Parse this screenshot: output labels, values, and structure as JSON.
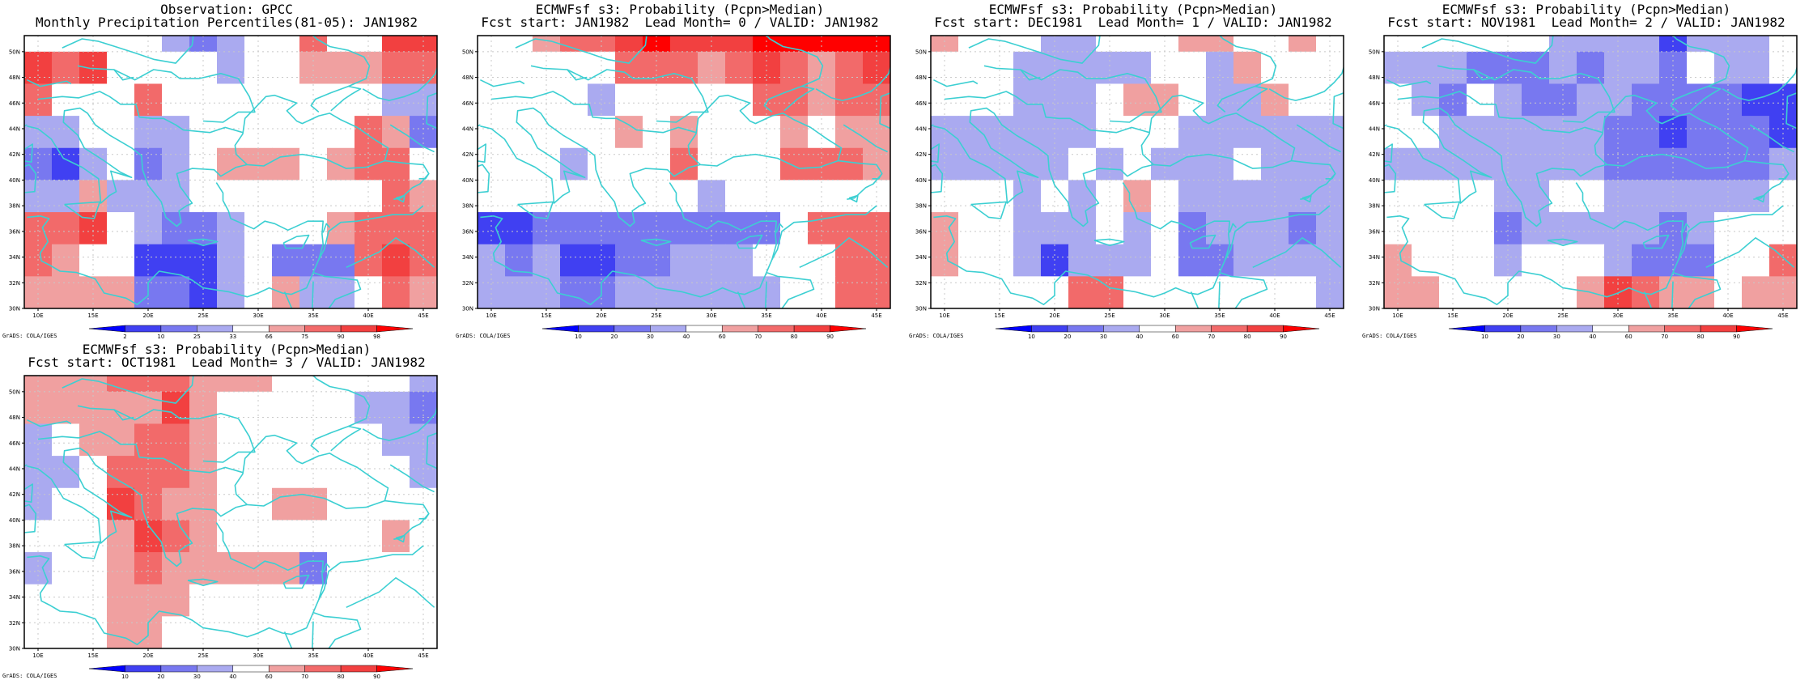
{
  "footer_label": "GrADS: COLA/IGES",
  "axis": {
    "lat_ticks": [
      "30N",
      "32N",
      "34N",
      "36N",
      "38N",
      "40N",
      "42N",
      "44N",
      "46N",
      "48N",
      "50N"
    ],
    "lon_ticks": [
      "10E",
      "15E",
      "20E",
      "25E",
      "30E",
      "35E",
      "40E",
      "45E"
    ]
  },
  "colors": {
    "coast": "#3ccfd2",
    "grid": "#c8c8c8",
    "frame": "#000000"
  },
  "colorbars": {
    "percentile": {
      "labels": [
        "2",
        "10",
        "25",
        "33",
        "66",
        "75",
        "90",
        "98"
      ],
      "colors": [
        "#0000ff",
        "#4040f2",
        "#7878f0",
        "#aaaaf0",
        "#ffffff",
        "#f0a0a0",
        "#f26a6a",
        "#f24040",
        "#ff0000"
      ]
    },
    "probability": {
      "labels": [
        "10",
        "20",
        "30",
        "40",
        "60",
        "70",
        "80",
        "90"
      ],
      "colors": [
        "#0000ff",
        "#4040f2",
        "#7878f0",
        "#aaaaf0",
        "#ffffff",
        "#f0a0a0",
        "#f26a6a",
        "#f24040",
        "#ff0000"
      ]
    }
  },
  "panels": [
    {
      "title1": "Observation: GPCC",
      "title2": "Monthly Precipitation Percentiles(81-05): JAN1982",
      "colorbar": "percentile"
    },
    {
      "title1": "ECMWFsf s3: Probability (Pcpn>Median)",
      "title2": "Fcst start: JAN1982  Lead Month= 0 / VALID: JAN1982",
      "colorbar": "probability"
    },
    {
      "title1": "ECMWFsf s3: Probability (Pcpn>Median)",
      "title2": "Fcst start: DEC1981  Lead Month= 1 / VALID: JAN1982",
      "colorbar": "probability"
    },
    {
      "title1": "ECMWFsf s3: Probability (Pcpn>Median)",
      "title2": "Fcst start: NOV1981  Lead Month= 2 / VALID: JAN1982",
      "colorbar": "probability"
    },
    {
      "title1": "ECMWFsf s3: Probability (Pcpn>Median)",
      "title2": "Fcst start: OCT1981  Lead Month= 3 / VALID: JAN1982",
      "colorbar": "probability"
    }
  ],
  "chart_data": [
    {
      "type": "heatmap",
      "title": "Observation: GPCC",
      "subtitle": "Monthly Precipitation Percentiles(81-05): JAN1982",
      "xlim": [
        8.75,
        46.25
      ],
      "ylim": [
        30,
        51.25
      ],
      "x_centers": [
        10,
        12.5,
        15,
        17.5,
        20,
        22.5,
        25,
        27.5,
        30,
        32.5,
        35,
        37.5,
        40,
        42.5,
        45
      ],
      "y_centers_top_to_bottom": [
        50,
        47.5,
        45,
        42.5,
        40,
        37.5,
        35,
        32.5,
        30
      ],
      "levels": [
        "2",
        "10",
        "25",
        "33",
        "66",
        "75",
        "90",
        "98"
      ],
      "class_index_grid": [
        [
          4,
          4,
          4,
          4,
          4,
          3,
          2,
          3,
          4,
          4,
          6,
          4,
          4,
          7,
          7
        ],
        [
          7,
          6,
          7,
          4,
          4,
          4,
          4,
          3,
          4,
          4,
          5,
          5,
          5,
          6,
          6
        ],
        [
          6,
          4,
          4,
          4,
          6,
          4,
          4,
          4,
          4,
          4,
          4,
          4,
          4,
          3,
          3
        ],
        [
          3,
          3,
          4,
          4,
          3,
          3,
          4,
          4,
          4,
          4,
          4,
          4,
          6,
          5,
          2
        ],
        [
          2,
          1,
          3,
          4,
          2,
          3,
          4,
          5,
          5,
          5,
          4,
          5,
          6,
          6,
          4
        ],
        [
          3,
          3,
          5,
          3,
          3,
          3,
          4,
          4,
          4,
          4,
          4,
          4,
          4,
          6,
          5
        ],
        [
          6,
          6,
          7,
          4,
          3,
          2,
          2,
          3,
          4,
          4,
          4,
          5,
          6,
          6,
          6
        ],
        [
          6,
          5,
          4,
          4,
          1,
          1,
          1,
          3,
          4,
          2,
          2,
          2,
          6,
          7,
          6
        ],
        [
          5,
          5,
          5,
          5,
          2,
          2,
          1,
          3,
          4,
          5,
          3,
          3,
          4,
          6,
          5
        ]
      ]
    },
    {
      "type": "heatmap",
      "title": "ECMWFsf s3: Probability (Pcpn>Median)",
      "subtitle": "Fcst start: JAN1982  Lead Month= 0 / VALID: JAN1982",
      "xlim": [
        8.75,
        46.25
      ],
      "ylim": [
        30,
        51.25
      ],
      "x_centers": [
        10,
        12.5,
        15,
        17.5,
        20,
        22.5,
        25,
        27.5,
        30,
        32.5,
        35,
        37.5,
        40,
        42.5,
        45
      ],
      "y_centers_top_to_bottom": [
        50,
        47.5,
        45,
        42.5,
        40,
        37.5,
        35,
        32.5,
        30
      ],
      "levels": [
        "10",
        "20",
        "30",
        "40",
        "60",
        "70",
        "80",
        "90"
      ],
      "class_index_grid": [
        [
          4,
          4,
          5,
          6,
          6,
          7,
          8,
          7,
          7,
          7,
          8,
          8,
          8,
          8,
          8
        ],
        [
          4,
          4,
          4,
          4,
          4,
          6,
          6,
          6,
          5,
          6,
          7,
          6,
          5,
          6,
          7
        ],
        [
          4,
          4,
          4,
          4,
          3,
          4,
          4,
          4,
          4,
          4,
          6,
          6,
          5,
          6,
          6
        ],
        [
          4,
          4,
          4,
          4,
          4,
          5,
          4,
          5,
          4,
          4,
          4,
          5,
          4,
          5,
          5
        ],
        [
          4,
          4,
          4,
          3,
          4,
          4,
          4,
          6,
          4,
          4,
          4,
          6,
          6,
          6,
          5
        ],
        [
          4,
          4,
          4,
          4,
          4,
          4,
          4,
          4,
          3,
          4,
          4,
          4,
          4,
          4,
          4
        ],
        [
          1,
          1,
          2,
          2,
          2,
          2,
          2,
          2,
          2,
          2,
          2,
          4,
          6,
          6,
          6
        ],
        [
          3,
          2,
          3,
          1,
          1,
          2,
          2,
          3,
          3,
          3,
          4,
          4,
          4,
          6,
          6
        ],
        [
          3,
          3,
          3,
          2,
          2,
          3,
          3,
          3,
          3,
          3,
          3,
          4,
          4,
          6,
          6
        ]
      ]
    },
    {
      "type": "heatmap",
      "title": "ECMWFsf s3: Probability (Pcpn>Median)",
      "subtitle": "Fcst start: DEC1981  Lead Month= 1 / VALID: JAN1982",
      "xlim": [
        8.75,
        46.25
      ],
      "ylim": [
        30,
        51.25
      ],
      "x_centers": [
        10,
        12.5,
        15,
        17.5,
        20,
        22.5,
        25,
        27.5,
        30,
        32.5,
        35,
        37.5,
        40,
        42.5,
        45
      ],
      "y_centers_top_to_bottom": [
        50,
        47.5,
        45,
        42.5,
        40,
        37.5,
        35,
        32.5,
        30
      ],
      "levels": [
        "10",
        "20",
        "30",
        "40",
        "60",
        "70",
        "80",
        "90"
      ],
      "class_index_grid": [
        [
          5,
          4,
          4,
          4,
          3,
          3,
          4,
          4,
          4,
          5,
          5,
          4,
          4,
          5,
          4
        ],
        [
          4,
          4,
          4,
          3,
          3,
          3,
          3,
          3,
          4,
          4,
          3,
          5,
          4,
          4,
          4
        ],
        [
          4,
          4,
          4,
          3,
          3,
          3,
          4,
          5,
          5,
          4,
          3,
          3,
          5,
          4,
          4
        ],
        [
          3,
          3,
          3,
          3,
          3,
          3,
          4,
          4,
          4,
          3,
          3,
          3,
          3,
          3,
          3
        ],
        [
          3,
          3,
          3,
          3,
          3,
          4,
          3,
          4,
          3,
          3,
          3,
          4,
          3,
          3,
          3
        ],
        [
          4,
          4,
          4,
          3,
          4,
          3,
          4,
          5,
          4,
          3,
          3,
          3,
          3,
          3,
          3
        ],
        [
          5,
          4,
          4,
          3,
          3,
          3,
          4,
          3,
          4,
          2,
          3,
          3,
          3,
          2,
          3
        ],
        [
          5,
          4,
          4,
          3,
          1,
          3,
          3,
          3,
          4,
          2,
          2,
          3,
          3,
          3,
          3
        ],
        [
          4,
          4,
          4,
          4,
          4,
          6,
          6,
          4,
          4,
          4,
          4,
          4,
          4,
          4,
          3
        ]
      ]
    },
    {
      "type": "heatmap",
      "title": "ECMWFsf s3: Probability (Pcpn>Median)",
      "subtitle": "Fcst start: NOV1981  Lead Month= 2 / VALID: JAN1982",
      "xlim": [
        8.75,
        46.25
      ],
      "ylim": [
        30,
        51.25
      ],
      "x_centers": [
        10,
        12.5,
        15,
        17.5,
        20,
        22.5,
        25,
        27.5,
        30,
        32.5,
        35,
        37.5,
        40,
        42.5,
        45
      ],
      "y_centers_top_to_bottom": [
        50,
        47.5,
        45,
        42.5,
        40,
        37.5,
        35,
        32.5,
        30
      ],
      "levels": [
        "10",
        "20",
        "30",
        "40",
        "60",
        "70",
        "80",
        "90"
      ],
      "class_index_grid": [
        [
          4,
          4,
          4,
          4,
          4,
          4,
          3,
          3,
          3,
          3,
          1,
          3,
          3,
          3,
          4
        ],
        [
          3,
          3,
          3,
          2,
          2,
          2,
          3,
          2,
          3,
          3,
          2,
          4,
          3,
          3,
          4
        ],
        [
          4,
          3,
          2,
          4,
          3,
          2,
          2,
          3,
          3,
          2,
          2,
          2,
          2,
          1,
          1
        ],
        [
          4,
          4,
          3,
          3,
          3,
          3,
          3,
          3,
          2,
          2,
          1,
          2,
          2,
          2,
          1
        ],
        [
          3,
          3,
          3,
          3,
          3,
          3,
          3,
          3,
          2,
          2,
          2,
          2,
          2,
          2,
          3
        ],
        [
          4,
          4,
          4,
          4,
          3,
          3,
          4,
          4,
          3,
          3,
          3,
          3,
          3,
          3,
          4
        ],
        [
          4,
          4,
          4,
          4,
          2,
          3,
          3,
          3,
          3,
          3,
          2,
          3,
          4,
          4,
          4
        ],
        [
          5,
          4,
          4,
          4,
          3,
          4,
          4,
          4,
          3,
          2,
          2,
          2,
          4,
          4,
          6
        ],
        [
          5,
          5,
          4,
          4,
          4,
          4,
          4,
          5,
          7,
          6,
          5,
          5,
          4,
          5,
          5
        ]
      ]
    },
    {
      "type": "heatmap",
      "title": "ECMWFsf s3: Probability (Pcpn>Median)",
      "subtitle": "Fcst start: OCT1981  Lead Month= 3 / VALID: JAN1982",
      "xlim": [
        8.75,
        46.25
      ],
      "ylim": [
        30,
        51.25
      ],
      "x_centers": [
        10,
        12.5,
        15,
        17.5,
        20,
        22.5,
        25,
        27.5,
        30,
        32.5,
        35,
        37.5,
        40,
        42.5,
        45
      ],
      "y_centers_top_to_bottom": [
        50,
        47.5,
        45,
        42.5,
        40,
        37.5,
        35,
        32.5,
        30
      ],
      "levels": [
        "10",
        "20",
        "30",
        "40",
        "60",
        "70",
        "80",
        "90"
      ],
      "class_index_grid": [
        [
          5,
          5,
          5,
          6,
          6,
          6,
          5,
          5,
          5,
          4,
          4,
          4,
          4,
          4,
          3
        ],
        [
          5,
          5,
          5,
          5,
          5,
          7,
          5,
          4,
          4,
          4,
          4,
          4,
          3,
          3,
          2
        ],
        [
          3,
          4,
          5,
          5,
          6,
          6,
          5,
          4,
          4,
          4,
          4,
          4,
          4,
          3,
          3
        ],
        [
          3,
          3,
          4,
          6,
          6,
          6,
          5,
          4,
          4,
          4,
          4,
          4,
          4,
          4,
          3
        ],
        [
          3,
          4,
          4,
          7,
          6,
          5,
          5,
          4,
          4,
          5,
          5,
          4,
          4,
          4,
          4
        ],
        [
          4,
          4,
          4,
          5,
          7,
          6,
          5,
          4,
          4,
          4,
          4,
          4,
          4,
          5,
          4
        ],
        [
          3,
          4,
          4,
          5,
          6,
          5,
          5,
          5,
          5,
          5,
          2,
          4,
          4,
          4,
          4
        ],
        [
          4,
          4,
          4,
          5,
          5,
          5,
          4,
          4,
          4,
          4,
          4,
          4,
          4,
          4,
          4
        ],
        [
          4,
          4,
          4,
          5,
          5,
          4,
          4,
          4,
          4,
          4,
          4,
          4,
          4,
          4,
          4
        ]
      ]
    }
  ]
}
